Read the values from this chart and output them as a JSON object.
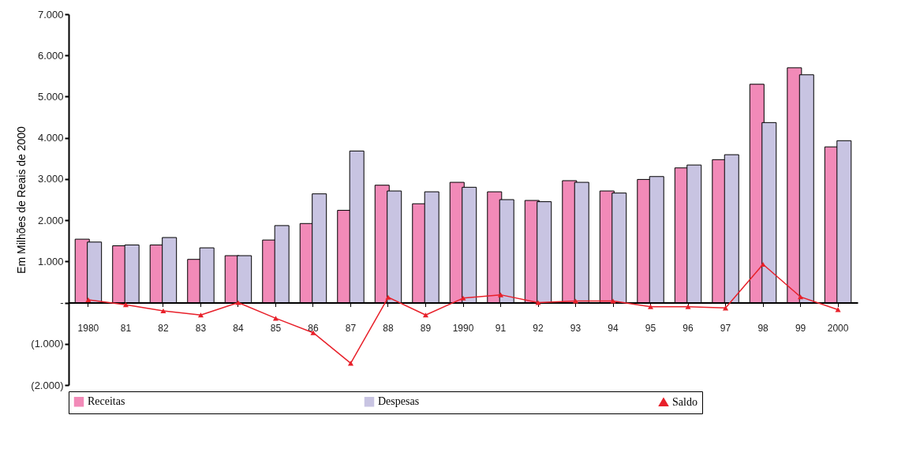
{
  "chart_data": {
    "type": "bar",
    "ylabel": "Em Milhões de Reais de 2000",
    "categories": [
      "1980",
      "81",
      "82",
      "83",
      "84",
      "85",
      "86",
      "87",
      "88",
      "89",
      "1990",
      "91",
      "92",
      "93",
      "94",
      "95",
      "96",
      "97",
      "98",
      "99",
      "2000"
    ],
    "series": [
      {
        "name": "Receitas",
        "color": "#f28ab8",
        "values": [
          1540,
          1380,
          1400,
          1050,
          1140,
          1520,
          1920,
          2240,
          2850,
          2400,
          2920,
          2690,
          2480,
          2960,
          2710,
          2990,
          3270,
          3470,
          5300,
          5700,
          3780
        ]
      },
      {
        "name": "Despesas",
        "color": "#c8c4e2",
        "values": [
          1470,
          1400,
          1580,
          1330,
          1140,
          1870,
          2640,
          3680,
          2710,
          2690,
          2800,
          2500,
          2450,
          2920,
          2660,
          3060,
          3340,
          3590,
          4370,
          5530,
          3930
        ]
      },
      {
        "name": "Saldo",
        "type": "line",
        "color": "#e8202a",
        "marker": "triangle",
        "values": [
          70,
          -50,
          -200,
          -300,
          0,
          -380,
          -730,
          -1470,
          130,
          -300,
          110,
          190,
          0,
          40,
          40,
          -100,
          -100,
          -130,
          930,
          140,
          -170
        ]
      }
    ],
    "ylim": [
      -2000,
      7000
    ],
    "yticks": [
      {
        "value": -2000,
        "label": "(2.000)"
      },
      {
        "value": -1000,
        "label": "(1.000)"
      },
      {
        "value": 0,
        "label": "-"
      },
      {
        "value": 1000,
        "label": "1.000"
      },
      {
        "value": 2000,
        "label": "2.000"
      },
      {
        "value": 3000,
        "label": "3.000"
      },
      {
        "value": 4000,
        "label": "4.000"
      },
      {
        "value": 5000,
        "label": "5.000"
      },
      {
        "value": 6000,
        "label": "6.000"
      },
      {
        "value": 7000,
        "label": "7.000"
      }
    ],
    "grid": false,
    "legend": "bottom"
  }
}
